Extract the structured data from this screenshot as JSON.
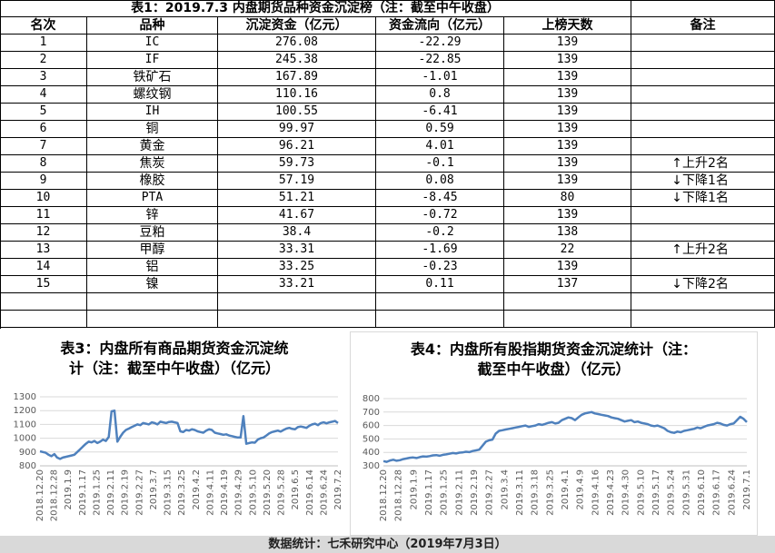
{
  "table": {
    "title": "表1：2019.7.3 内盘期货品种资金沉淀榜（注：截至中午收盘）",
    "headers": [
      "名次",
      "品种",
      "沉淀资金（亿元）",
      "资金流向（亿元）",
      "上榜天数",
      "备注"
    ],
    "rows": [
      {
        "rank": "1",
        "name": "IC",
        "fund": "276.08",
        "flow": "-22.29",
        "days": "139",
        "note": ""
      },
      {
        "rank": "2",
        "name": "IF",
        "fund": "245.38",
        "flow": "-22.85",
        "days": "139",
        "note": ""
      },
      {
        "rank": "3",
        "name": "铁矿石",
        "fund": "167.89",
        "flow": "-1.01",
        "days": "139",
        "note": ""
      },
      {
        "rank": "4",
        "name": "螺纹钢",
        "fund": "110.16",
        "flow": "0.8",
        "days": "139",
        "note": ""
      },
      {
        "rank": "5",
        "name": "IH",
        "fund": "100.55",
        "flow": "-6.41",
        "days": "139",
        "note": ""
      },
      {
        "rank": "6",
        "name": "铜",
        "fund": "99.97",
        "flow": "0.59",
        "days": "139",
        "note": ""
      },
      {
        "rank": "7",
        "name": "黄金",
        "fund": "96.21",
        "flow": "4.01",
        "days": "139",
        "note": ""
      },
      {
        "rank": "8",
        "name": "焦炭",
        "fund": "59.73",
        "flow": "-0.1",
        "days": "139",
        "note": "上升2名",
        "dir": "up"
      },
      {
        "rank": "9",
        "name": "橡胶",
        "fund": "57.19",
        "flow": "0.08",
        "days": "139",
        "note": "下降1名",
        "dir": "down"
      },
      {
        "rank": "10",
        "name": "PTA",
        "fund": "51.21",
        "flow": "-8.45",
        "days": "80",
        "note": "下降1名",
        "dir": "down"
      },
      {
        "rank": "11",
        "name": "锌",
        "fund": "41.67",
        "flow": "-0.72",
        "days": "139",
        "note": ""
      },
      {
        "rank": "12",
        "name": "豆粕",
        "fund": "38.4",
        "flow": "-0.2",
        "days": "138",
        "note": ""
      },
      {
        "rank": "13",
        "name": "甲醇",
        "fund": "33.31",
        "flow": "-1.69",
        "days": "22",
        "note": "上升2名",
        "dir": "up"
      },
      {
        "rank": "14",
        "name": "铝",
        "fund": "33.25",
        "flow": "-0.23",
        "days": "139",
        "note": ""
      },
      {
        "rank": "15",
        "name": "镍",
        "fund": "33.21",
        "flow": "0.11",
        "days": "137",
        "note": "下降2名",
        "dir": "down"
      }
    ]
  },
  "arrows": {
    "up": "↑",
    "down": "↓"
  },
  "footer": "数据统计：七禾研究中心（2019年7月3日）",
  "colors": {
    "line": "#4f81bd",
    "grid": "#d9d9d9",
    "axis": "#bfbfbf",
    "footer_bg": "#d9d9d9"
  },
  "chart_data": [
    {
      "type": "line",
      "title": "表3：内盘所有商品期货资金沉淀统计（注：截至中午收盘）（亿元）",
      "title_lines": [
        "表3：内盘所有商品期货资金沉淀统",
        "计（注：截至中午收盘）（亿元）"
      ],
      "ylim": [
        800,
        1300
      ],
      "yticks": [
        800,
        900,
        1000,
        1100,
        1200,
        1300
      ],
      "xticks": [
        "2018.12.20",
        "2018.12.28",
        "2019.1.9",
        "2019.1.17",
        "2019.1.25",
        "2019.2.11",
        "2019.2.19",
        "2019.2.27",
        "2019.3.7",
        "2019.3.15",
        "2019.3.25",
        "2019.4.2",
        "2019.4.11",
        "2019.4.19",
        "2019.4.29",
        "2019.5.10",
        "2019.5.20",
        "2019.5.28",
        "2019.6.5",
        "2019.6.14",
        "2019.6.24",
        "2019.7.2"
      ],
      "values": [
        905,
        900,
        895,
        880,
        870,
        885,
        860,
        850,
        860,
        865,
        870,
        875,
        880,
        900,
        920,
        940,
        960,
        975,
        970,
        980,
        965,
        975,
        990,
        980,
        1010,
        1195,
        1200,
        975,
        1010,
        1040,
        1060,
        1070,
        1080,
        1090,
        1100,
        1095,
        1110,
        1105,
        1100,
        1115,
        1110,
        1100,
        1120,
        1115,
        1110,
        1118,
        1120,
        1115,
        1110,
        1050,
        1045,
        1060,
        1055,
        1065,
        1060,
        1050,
        1045,
        1040,
        1055,
        1065,
        1060,
        1040,
        1035,
        1030,
        1025,
        1028,
        1020,
        1015,
        1010,
        1005,
        1005,
        1160,
        960,
        965,
        970,
        968,
        990,
        1000,
        1005,
        1020,
        1035,
        1045,
        1050,
        1055,
        1048,
        1060,
        1070,
        1075,
        1068,
        1065,
        1080,
        1085,
        1080,
        1075,
        1090,
        1100,
        1105,
        1095,
        1110,
        1115,
        1108,
        1115,
        1120,
        1125,
        1110
      ]
    },
    {
      "type": "line",
      "title": "表4：内盘所有股指期货资金沉淀统计（注：截至中午收盘）（亿元）",
      "title_lines": [
        "表4：内盘所有股指期货资金沉淀统计（注：",
        "截至中午收盘）（亿元）"
      ],
      "ylim": [
        300,
        800
      ],
      "yticks": [
        300,
        400,
        500,
        600,
        700,
        800
      ],
      "xticks": [
        "2018.12.20",
        "2018.12.28",
        "2019.1.9",
        "2019.1.17",
        "2019.1.25",
        "2019.2.11",
        "2019.2.19",
        "2019.2.27",
        "2019.3.4",
        "2019.3.11",
        "2019.3.18",
        "2019.3.25",
        "2019.4.1",
        "2019.4.9",
        "2019.4.16",
        "2019.4.23",
        "2019.4.30",
        "2019.5.10",
        "2019.5.17",
        "2019.5.24",
        "2019.5.31",
        "2019.6.10",
        "2019.6.17",
        "2019.6.24",
        "2019.7.1"
      ],
      "values": [
        335,
        330,
        340,
        345,
        338,
        342,
        350,
        355,
        360,
        362,
        358,
        365,
        370,
        368,
        372,
        378,
        380,
        375,
        382,
        385,
        390,
        395,
        392,
        398,
        400,
        405,
        402,
        410,
        415,
        420,
        450,
        480,
        490,
        495,
        540,
        560,
        565,
        570,
        575,
        580,
        585,
        590,
        595,
        600,
        590,
        595,
        600,
        610,
        605,
        612,
        620,
        625,
        615,
        620,
        640,
        650,
        660,
        655,
        640,
        660,
        680,
        690,
        695,
        700,
        690,
        685,
        680,
        675,
        670,
        660,
        655,
        650,
        640,
        630,
        635,
        640,
        625,
        630,
        620,
        615,
        610,
        600,
        595,
        600,
        590,
        580,
        560,
        550,
        545,
        555,
        550,
        560,
        565,
        570,
        575,
        585,
        580,
        590,
        600,
        605,
        610,
        620,
        615,
        605,
        600,
        610,
        615,
        640,
        665,
        650,
        625
      ]
    }
  ]
}
